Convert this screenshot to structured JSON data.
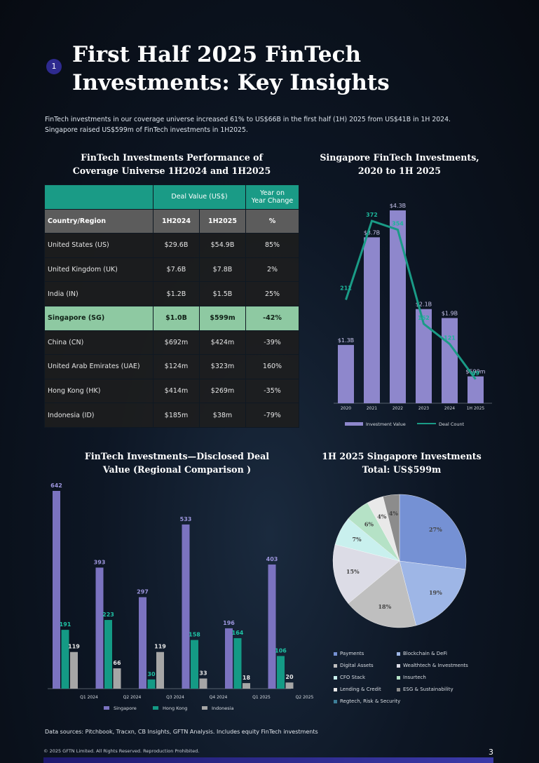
{
  "header": {
    "section_number": "1",
    "title_line1": "First Half 2025 FinTech",
    "title_line2": "Investments: Key Insights",
    "intro_line1": "FinTech investments in our coverage universe increased 61% to US$66B in the first half (1H) 2025 from US$41B in 1H 2024.",
    "intro_line2": "Singapore raised US$599m of FinTech investments in 1H2025."
  },
  "table_section": {
    "title_line1": "FinTech Investments Performance of",
    "title_line2": "Coverage Universe 1H2024 and 1H2025",
    "header_deal_value": "Deal Value (US$)",
    "header_yoy_line1": "Year on",
    "header_yoy_line2": "Year Change",
    "sub_country": "Country/Region",
    "sub_1h2024": "1H2024",
    "sub_1h2025": "1H2025",
    "sub_pct": "%",
    "rows": [
      {
        "country": "United States (US)",
        "v2024": "$29.6B",
        "v2025": "$54.9B",
        "change": "85%"
      },
      {
        "country": "United Kingdom (UK)",
        "v2024": "$7.6B",
        "v2025": "$7.8B",
        "change": "2%"
      },
      {
        "country": "India (IN)",
        "v2024": "$1.2B",
        "v2025": "$1.5B",
        "change": "25%"
      },
      {
        "country": "Singapore (SG)",
        "v2024": "$1.0B",
        "v2025": "$599m",
        "change": "-42%"
      },
      {
        "country": "China (CN)",
        "v2024": "$692m",
        "v2025": "$424m",
        "change": "-39%"
      },
      {
        "country": "United Arab Emirates (UAE)",
        "v2024": "$124m",
        "v2025": "$323m",
        "change": "160%"
      },
      {
        "country": "Hong Kong (HK)",
        "v2024": "$414m",
        "v2025": "$269m",
        "change": "-35%"
      },
      {
        "country": "Indonesia (ID)",
        "v2024": "$185m",
        "v2025": "$38m",
        "change": "-79%"
      }
    ]
  },
  "chart_data": [
    {
      "type": "bar",
      "title": "Singapore FinTech Investments, 2020 to 1H 2025",
      "categories": [
        "2020",
        "2021",
        "2022",
        "2023",
        "2024",
        "1H 2025"
      ],
      "series": [
        {
          "name": "Investment Value",
          "values": [
            1.3,
            3.7,
            4.3,
            2.1,
            1.9,
            0.599
          ],
          "labels": [
            "$1.3B",
            "$3.7B",
            "$4.3B",
            "$2.1B",
            "$1.9B",
            "$599m"
          ],
          "color": "#8e87cc"
        },
        {
          "name": "Deal Count",
          "type": "line",
          "values": [
            211,
            372,
            354,
            162,
            121,
            49
          ],
          "color": "#1a9b86"
        }
      ],
      "legend": "bottom"
    },
    {
      "type": "bar",
      "title": "FinTech Investments—Disclosed Deal Value (Regional Comparison )",
      "categories": [
        "Q1 2024",
        "Q2 2024",
        "Q3 2024",
        "Q4 2024",
        "Q1 2025",
        "Q2 2025"
      ],
      "series": [
        {
          "name": "Singapore",
          "values": [
            642,
            393,
            297,
            533,
            196,
            403
          ],
          "color": "#7b73c0"
        },
        {
          "name": "Hong Kong",
          "values": [
            191,
            223,
            30,
            158,
            164,
            106
          ],
          "color": "#149a85"
        },
        {
          "name": "Indonesia",
          "values": [
            119,
            66,
            119,
            33,
            18,
            20
          ],
          "color": "#a6a6a6"
        }
      ],
      "ylim": [
        0,
        700
      ],
      "legend": "bottom"
    },
    {
      "type": "pie",
      "title_line1": "1H 2025 Singapore Investments",
      "title_line2": "Total: US$599m",
      "slices": [
        {
          "name": "Payments",
          "value": 27,
          "label": "27%",
          "color": "#7591d4"
        },
        {
          "name": "Blockchain & DeFi",
          "value": 19,
          "label": "19%",
          "color": "#9eb6e6"
        },
        {
          "name": "Digital Assets",
          "value": 18,
          "label": "18%",
          "color": "#bfbfbf"
        },
        {
          "name": "Wealthtech & Investments",
          "value": 15,
          "label": "15%",
          "color": "#dcdce6"
        },
        {
          "name": "CFO Stack",
          "value": 7,
          "label": "7%",
          "color": "#c9f0ee"
        },
        {
          "name": "Insurtech",
          "value": 6,
          "label": "6%",
          "color": "#b5e2c6"
        },
        {
          "name": "Lending & Credit",
          "value": 4,
          "label": "4%",
          "color": "#e9e9e9"
        },
        {
          "name": "ESG & Sustainability",
          "value": 4,
          "label": "4%",
          "color": "#8c8c8c"
        },
        {
          "name": "Regtech, Risk & Security",
          "value": 0,
          "label": "",
          "color": "#3d7e98"
        }
      ]
    }
  ],
  "footer": {
    "sources": "Data sources: Pitchbook, Tracxn, CB Insights, GFTN Analysis. Includes equity FinTech investments",
    "copyright": "© 2025 GFTN Limited. All Rights Reserved. Reproduction Prohibited.",
    "page_number": "3"
  }
}
